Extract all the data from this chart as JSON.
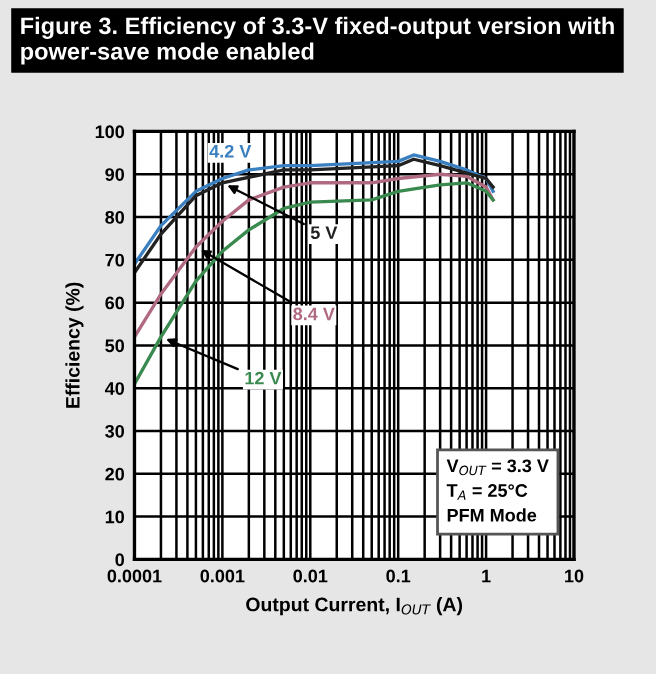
{
  "chart_data": {
    "type": "line",
    "title": "Figure 3. Efficiency of 3.3-V fixed-output version with power-save mode enabled",
    "xlabel": "Output Current, I$_{OUT}$ (A)",
    "ylabel": "Efficiency (%)",
    "log": "x",
    "xlim": [
      0.0001,
      10
    ],
    "xticks": [
      0.0001,
      0.001,
      0.01,
      0.1,
      1,
      10
    ],
    "ylim": [
      0,
      100
    ],
    "yticks": [
      0,
      10,
      20,
      30,
      40,
      50,
      60,
      70,
      80,
      90,
      100
    ],
    "grid": true,
    "legend": false,
    "series": [
      {
        "name": "4.2 V",
        "color": "#3a7fc0",
        "x": [
          0.0001,
          0.0002,
          0.0005,
          0.001,
          0.002,
          0.005,
          0.01,
          0.1,
          0.15,
          0.3,
          0.6,
          1,
          1.2
        ],
        "values": [
          69,
          78,
          86,
          89,
          91,
          92,
          92,
          93,
          94.5,
          93,
          91,
          89,
          86
        ]
      },
      {
        "name": "5 V",
        "color": "#222222",
        "x": [
          0.0001,
          0.0002,
          0.0005,
          0.001,
          0.005,
          0.01,
          0.1,
          0.15,
          0.3,
          1,
          1.2
        ],
        "values": [
          67,
          76,
          85,
          88,
          91,
          91,
          92,
          93.5,
          92,
          89,
          87
        ]
      },
      {
        "name": "8.4 V",
        "color": "#b06a80",
        "x": [
          0.0001,
          0.0002,
          0.0005,
          0.001,
          0.002,
          0.005,
          0.01,
          0.05,
          0.1,
          0.3,
          0.6,
          1,
          1.2
        ],
        "values": [
          52,
          62,
          73,
          79,
          84,
          87,
          88,
          88,
          89,
          90,
          89.5,
          87,
          84
        ]
      },
      {
        "name": "12 V",
        "color": "#3a8a50",
        "x": [
          0.0001,
          0.0002,
          0.0005,
          0.001,
          0.002,
          0.005,
          0.01,
          0.05,
          0.1,
          0.3,
          0.6,
          1,
          1.2
        ],
        "values": [
          41,
          52,
          65,
          72,
          77,
          82,
          83.5,
          84,
          86,
          87.5,
          88,
          86,
          84
        ]
      }
    ],
    "annotations": [
      "V$_{OUT}$ = 3.3 V\nT$_{A}$ = 25°C\nPFM Mode"
    ]
  }
}
